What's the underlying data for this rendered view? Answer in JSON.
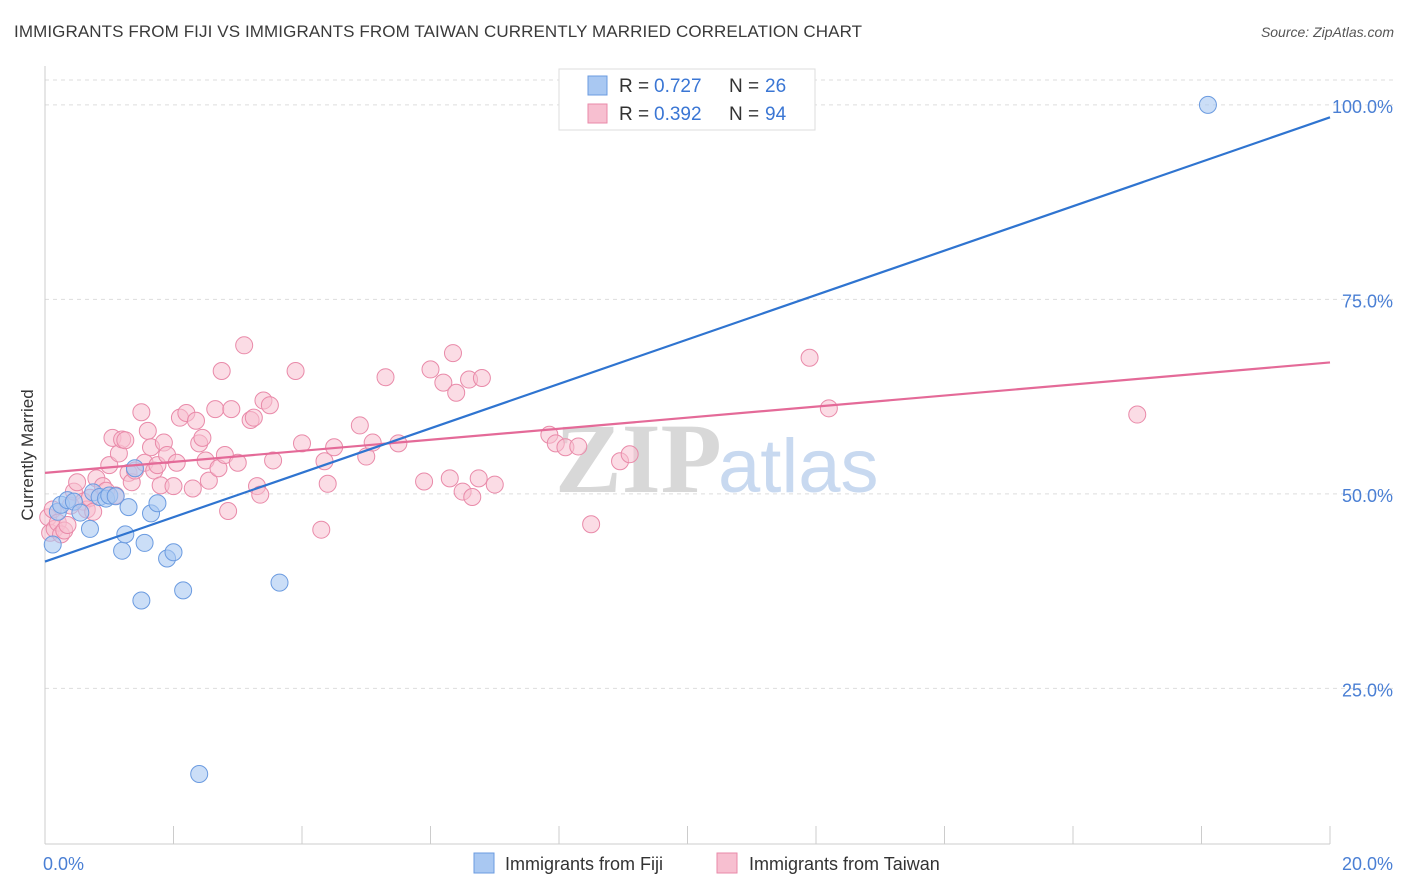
{
  "title": "IMMIGRANTS FROM FIJI VS IMMIGRANTS FROM TAIWAN CURRENTLY MARRIED CORRELATION CHART",
  "source": "Source: ZipAtlas.com",
  "watermark": {
    "zip": "ZIP",
    "atlas": "atlas"
  },
  "colors": {
    "fiji_fill": "#a9c8f2",
    "fiji_stroke": "#6b9be0",
    "fiji_line": "#2f74d0",
    "taiwan_fill": "#f7bfd0",
    "taiwan_stroke": "#e98aa9",
    "taiwan_line": "#e46a98",
    "tick_label": "#4a7fd4",
    "grid": "#dddddd"
  },
  "legend_top": [
    {
      "r_label": "R = ",
      "r_value": "0.727",
      "n_label": "N = ",
      "n_value": "26"
    },
    {
      "r_label": "R = ",
      "r_value": "0.392",
      "n_label": "N = ",
      "n_value": "94"
    }
  ],
  "chart_data": {
    "type": "scatter",
    "xlabel": "",
    "ylabel": "Currently Married",
    "xlim": [
      0,
      20
    ],
    "ylim": [
      5,
      105
    ],
    "x_tick_labels": [
      "0.0%",
      "20.0%"
    ],
    "y_ticks": [
      25,
      50,
      75,
      100
    ],
    "y_tick_labels": [
      "25.0%",
      "50.0%",
      "75.0%",
      "100.0%"
    ],
    "grid": true,
    "legend_position": "bottom-center",
    "series": [
      {
        "name": "Immigrants from Fiji",
        "R": 0.727,
        "N": 26,
        "trend": {
          "x": [
            0,
            20
          ],
          "y": [
            41.3,
            98.4
          ]
        },
        "points": [
          [
            0.12,
            43.5
          ],
          [
            0.2,
            47.7
          ],
          [
            0.25,
            48.6
          ],
          [
            0.35,
            49.2
          ],
          [
            0.45,
            49.0
          ],
          [
            0.55,
            47.6
          ],
          [
            0.7,
            45.5
          ],
          [
            0.75,
            50.2
          ],
          [
            0.85,
            49.6
          ],
          [
            0.95,
            49.4
          ],
          [
            1.0,
            49.8
          ],
          [
            1.1,
            49.7
          ],
          [
            1.2,
            42.7
          ],
          [
            1.25,
            44.8
          ],
          [
            1.3,
            48.3
          ],
          [
            1.4,
            53.3
          ],
          [
            1.5,
            36.3
          ],
          [
            1.55,
            43.7
          ],
          [
            1.65,
            47.5
          ],
          [
            1.75,
            48.8
          ],
          [
            1.9,
            41.7
          ],
          [
            2.0,
            42.5
          ],
          [
            2.15,
            37.6
          ],
          [
            2.4,
            14.0
          ],
          [
            3.65,
            38.6
          ],
          [
            18.1,
            100.0
          ]
        ]
      },
      {
        "name": "Immigrants from Taiwan",
        "R": 0.392,
        "N": 94,
        "trend": {
          "x": [
            0,
            20
          ],
          "y": [
            52.7,
            66.9
          ]
        },
        "points": [
          [
            0.05,
            47.0
          ],
          [
            0.08,
            45.0
          ],
          [
            0.12,
            48.0
          ],
          [
            0.15,
            45.5
          ],
          [
            0.2,
            46.3
          ],
          [
            0.25,
            44.8
          ],
          [
            0.3,
            45.3
          ],
          [
            0.35,
            46.0
          ],
          [
            0.4,
            48.5
          ],
          [
            0.45,
            50.3
          ],
          [
            0.5,
            51.5
          ],
          [
            0.6,
            49.0
          ],
          [
            0.65,
            48.0
          ],
          [
            0.7,
            49.5
          ],
          [
            0.75,
            47.7
          ],
          [
            0.8,
            52.0
          ],
          [
            0.9,
            51.0
          ],
          [
            0.95,
            50.4
          ],
          [
            1.0,
            53.7
          ],
          [
            1.05,
            57.2
          ],
          [
            1.1,
            49.8
          ],
          [
            1.15,
            55.2
          ],
          [
            1.2,
            57.0
          ],
          [
            1.25,
            56.9
          ],
          [
            1.3,
            52.7
          ],
          [
            1.35,
            51.5
          ],
          [
            1.4,
            53.0
          ],
          [
            1.5,
            60.5
          ],
          [
            1.55,
            54.0
          ],
          [
            1.6,
            58.1
          ],
          [
            1.65,
            56.0
          ],
          [
            1.7,
            53.0
          ],
          [
            1.75,
            53.7
          ],
          [
            1.8,
            51.1
          ],
          [
            1.85,
            56.6
          ],
          [
            1.9,
            55.0
          ],
          [
            2.0,
            51.0
          ],
          [
            2.05,
            54.0
          ],
          [
            2.1,
            59.8
          ],
          [
            2.2,
            60.4
          ],
          [
            2.3,
            50.7
          ],
          [
            2.35,
            59.4
          ],
          [
            2.4,
            56.5
          ],
          [
            2.45,
            57.2
          ],
          [
            2.5,
            54.3
          ],
          [
            2.55,
            51.7
          ],
          [
            2.65,
            60.9
          ],
          [
            2.7,
            53.3
          ],
          [
            2.75,
            65.8
          ],
          [
            2.8,
            55.0
          ],
          [
            2.85,
            47.8
          ],
          [
            2.9,
            60.9
          ],
          [
            3.0,
            54.0
          ],
          [
            3.1,
            69.1
          ],
          [
            3.2,
            59.5
          ],
          [
            3.25,
            59.8
          ],
          [
            3.3,
            51.0
          ],
          [
            3.35,
            49.9
          ],
          [
            3.4,
            62.0
          ],
          [
            3.5,
            61.4
          ],
          [
            3.55,
            54.3
          ],
          [
            3.9,
            65.8
          ],
          [
            4.0,
            56.5
          ],
          [
            4.3,
            45.4
          ],
          [
            4.35,
            54.2
          ],
          [
            4.4,
            51.3
          ],
          [
            4.5,
            56.0
          ],
          [
            4.9,
            58.8
          ],
          [
            5.0,
            54.8
          ],
          [
            5.1,
            56.6
          ],
          [
            5.3,
            65.0
          ],
          [
            5.5,
            56.5
          ],
          [
            5.9,
            51.6
          ],
          [
            6.0,
            66.0
          ],
          [
            6.2,
            64.3
          ],
          [
            6.3,
            52.0
          ],
          [
            6.35,
            68.1
          ],
          [
            6.4,
            63.0
          ],
          [
            6.5,
            50.3
          ],
          [
            6.6,
            64.7
          ],
          [
            6.65,
            49.6
          ],
          [
            6.75,
            52.0
          ],
          [
            6.8,
            64.9
          ],
          [
            7.0,
            51.2
          ],
          [
            7.85,
            57.6
          ],
          [
            7.95,
            56.5
          ],
          [
            8.1,
            56.0
          ],
          [
            8.3,
            56.1
          ],
          [
            8.5,
            46.1
          ],
          [
            8.95,
            54.2
          ],
          [
            9.1,
            55.1
          ],
          [
            11.9,
            67.5
          ],
          [
            12.2,
            61.0
          ],
          [
            17.0,
            60.2
          ]
        ]
      }
    ]
  }
}
